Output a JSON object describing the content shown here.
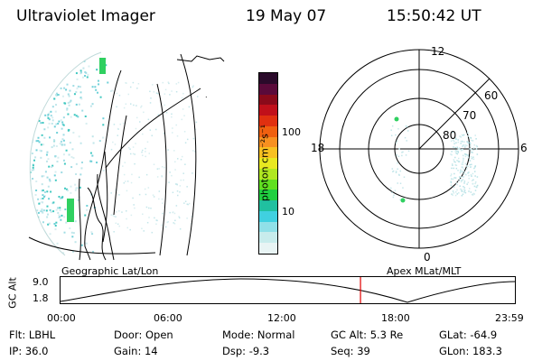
{
  "header": {
    "title": "Ultraviolet Imager",
    "date": "19 May 07",
    "time": "15:50:42 UT"
  },
  "colorbar": {
    "unit_label": "photon cm⁻²s⁻¹",
    "ticks": [
      {
        "label": "100",
        "value": 100
      },
      {
        "label": "10",
        "value": 10
      }
    ],
    "colors": [
      "#2a0a2a",
      "#5a0a3a",
      "#8a0a1a",
      "#c0101a",
      "#e03010",
      "#f06010",
      "#f89020",
      "#f8c020",
      "#e8e820",
      "#b0e820",
      "#60e020",
      "#20d040",
      "#20c0a0",
      "#40d0e0",
      "#90e0e8",
      "#c8ecec",
      "#e8f4f4"
    ]
  },
  "left_panel": {
    "caption": "Geographic Lat/Lon"
  },
  "right_panel": {
    "caption": "Apex MLat/MLT",
    "mlt_labels": {
      "top": "12",
      "bottom": "0",
      "left": "18",
      "right": "6"
    },
    "lat_labels": [
      "60",
      "70",
      "80"
    ]
  },
  "timeline": {
    "axis_label": "GC Alt",
    "y_ticks": [
      "9.0",
      "1.8"
    ],
    "x_ticks": [
      "00:00",
      "06:00",
      "12:00",
      "18:00",
      "23:59"
    ],
    "current_time": "15:50",
    "marker_color": "#e00000"
  },
  "status": {
    "flt": {
      "label": "Flt:",
      "value": "LBHL"
    },
    "ip": {
      "label": "IP:",
      "value": "36.0"
    },
    "door": {
      "label": "Door:",
      "value": "Open"
    },
    "gain": {
      "label": "Gain:",
      "value": "14"
    },
    "mode": {
      "label": "Mode:",
      "value": "Normal"
    },
    "dsp": {
      "label": "Dsp:",
      "value": "-9.3"
    },
    "gcalt": {
      "label": "GC Alt:",
      "value": "5.3 Re"
    },
    "seq": {
      "label": "Seq:",
      "value": "39"
    },
    "glat": {
      "label": "GLat:",
      "value": "-64.9"
    },
    "glon": {
      "label": "GLon:",
      "value": "183.3"
    }
  }
}
